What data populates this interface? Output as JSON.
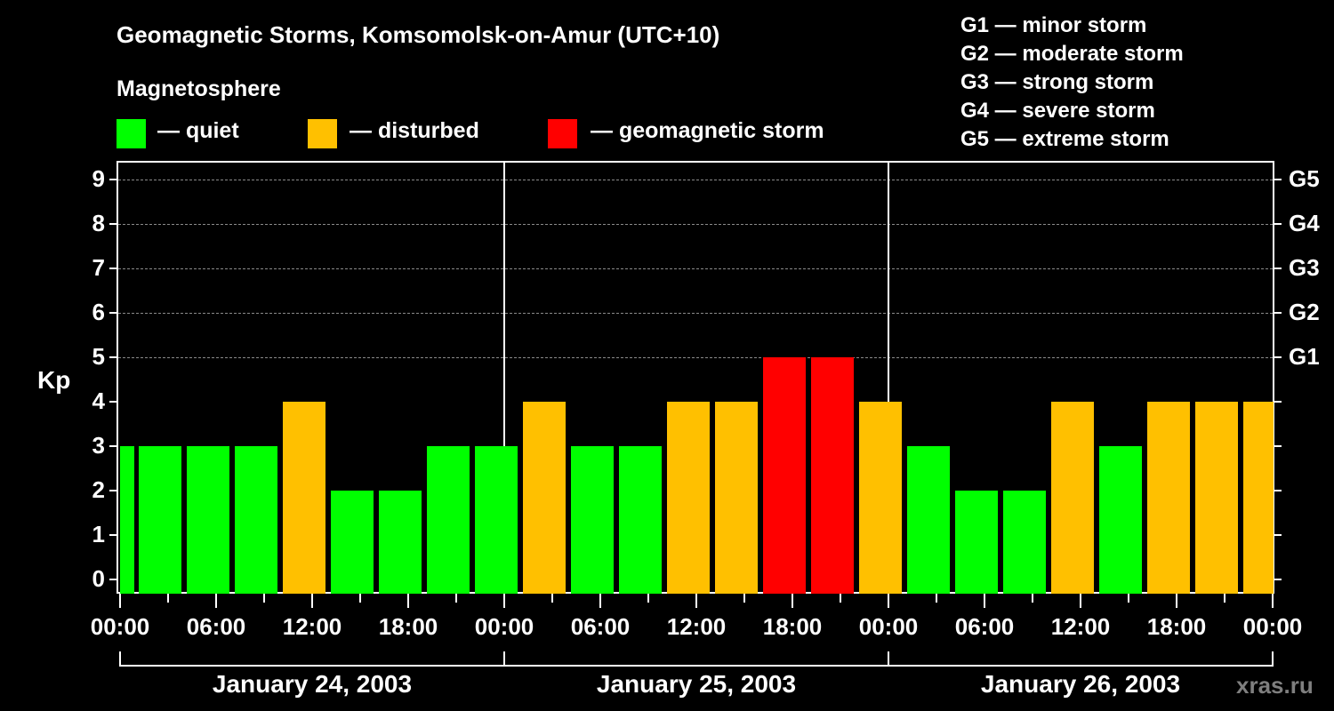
{
  "title": "Geomagnetic Storms, Komsomolsk-on-Amur (UTC+10)",
  "legend": {
    "heading": "Magnetosphere",
    "items": [
      {
        "label": "— quiet",
        "color": "#00ff00"
      },
      {
        "label": "— disturbed",
        "color": "#ffc000"
      },
      {
        "label": "— geomagnetic storm",
        "color": "#ff0000"
      }
    ]
  },
  "g_scale": [
    "G1 — minor storm",
    "G2 — moderate storm",
    "G3 — strong storm",
    "G4 — severe storm",
    "G5 — extreme storm"
  ],
  "watermark": "xras.ru",
  "chart_data": {
    "type": "bar",
    "title": "Geomagnetic Storms, Komsomolsk-on-Amur (UTC+10)",
    "ylabel": "Kp",
    "xlabel": "",
    "ylim": [
      0,
      9
    ],
    "yticks": [
      "0",
      "1",
      "2",
      "3",
      "4",
      "5",
      "6",
      "7",
      "8",
      "9"
    ],
    "y2ticks": [
      {
        "kp": 5,
        "label": "G1"
      },
      {
        "kp": 6,
        "label": "G2"
      },
      {
        "kp": 7,
        "label": "G3"
      },
      {
        "kp": 8,
        "label": "G4"
      },
      {
        "kp": 9,
        "label": "G5"
      }
    ],
    "xticks": [
      "00:00",
      "06:00",
      "12:00",
      "18:00",
      "00:00",
      "06:00",
      "12:00",
      "18:00",
      "00:00",
      "06:00",
      "12:00",
      "18:00",
      "00:00"
    ],
    "dates": [
      "January 24, 2003",
      "January 25, 2003",
      "January 26, 2003"
    ],
    "grid": true,
    "colors": {
      "quiet": "#00ff00",
      "disturbed": "#ffc000",
      "storm": "#ff0000"
    },
    "bars": [
      {
        "start": "Jan 23 22:00",
        "kp": 3,
        "level": "quiet",
        "partial": true
      },
      {
        "start": "Jan 24 01:00",
        "kp": 3,
        "level": "quiet"
      },
      {
        "start": "Jan 24 04:00",
        "kp": 3,
        "level": "quiet"
      },
      {
        "start": "Jan 24 07:00",
        "kp": 3,
        "level": "quiet"
      },
      {
        "start": "Jan 24 10:00",
        "kp": 4,
        "level": "disturbed"
      },
      {
        "start": "Jan 24 13:00",
        "kp": 2,
        "level": "quiet"
      },
      {
        "start": "Jan 24 16:00",
        "kp": 2,
        "level": "quiet"
      },
      {
        "start": "Jan 24 19:00",
        "kp": 3,
        "level": "quiet"
      },
      {
        "start": "Jan 24 22:00",
        "kp": 3,
        "level": "quiet"
      },
      {
        "start": "Jan 25 01:00",
        "kp": 4,
        "level": "disturbed"
      },
      {
        "start": "Jan 25 04:00",
        "kp": 3,
        "level": "quiet"
      },
      {
        "start": "Jan 25 07:00",
        "kp": 3,
        "level": "quiet"
      },
      {
        "start": "Jan 25 10:00",
        "kp": 4,
        "level": "disturbed"
      },
      {
        "start": "Jan 25 13:00",
        "kp": 4,
        "level": "disturbed"
      },
      {
        "start": "Jan 25 16:00",
        "kp": 5,
        "level": "storm"
      },
      {
        "start": "Jan 25 19:00",
        "kp": 5,
        "level": "storm"
      },
      {
        "start": "Jan 25 22:00",
        "kp": 4,
        "level": "disturbed"
      },
      {
        "start": "Jan 26 01:00",
        "kp": 3,
        "level": "quiet"
      },
      {
        "start": "Jan 26 04:00",
        "kp": 2,
        "level": "quiet"
      },
      {
        "start": "Jan 26 07:00",
        "kp": 2,
        "level": "quiet"
      },
      {
        "start": "Jan 26 10:00",
        "kp": 4,
        "level": "disturbed"
      },
      {
        "start": "Jan 26 13:00",
        "kp": 3,
        "level": "quiet"
      },
      {
        "start": "Jan 26 16:00",
        "kp": 4,
        "level": "disturbed"
      },
      {
        "start": "Jan 26 19:00",
        "kp": 4,
        "level": "disturbed"
      },
      {
        "start": "Jan 26 22:00",
        "kp": 4,
        "level": "disturbed",
        "partial": true
      }
    ]
  }
}
